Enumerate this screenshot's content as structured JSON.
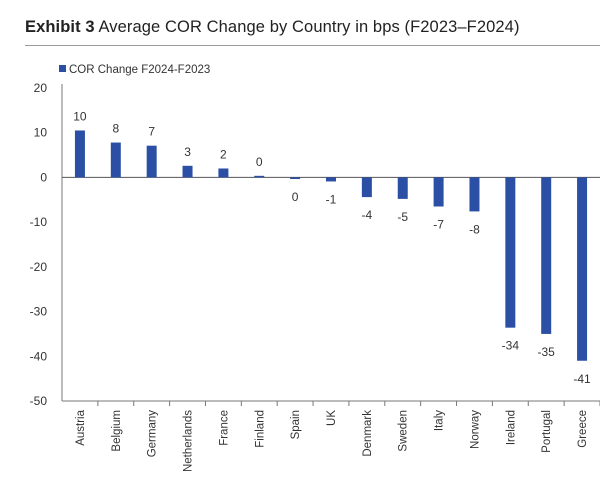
{
  "header": {
    "exhibit": "Exhibit 3",
    "title": "Average COR Change by Country in bps (F2023–F2024)"
  },
  "colors": {
    "bar": "#2B4FA4",
    "axis": "#777777"
  },
  "chart_data": {
    "type": "bar",
    "title": "Average COR Change by Country in bps (F2023–F2024)",
    "xlabel": "",
    "ylabel": "",
    "ylim": [
      -50,
      20
    ],
    "yticks": [
      20,
      10,
      0,
      -10,
      -20,
      -30,
      -40,
      -50
    ],
    "grid": false,
    "legend_position": "top-left",
    "categories": [
      "Austria",
      "Belgium",
      "Germany",
      "Netherlands",
      "France",
      "Finland",
      "Spain",
      "UK",
      "Denmark",
      "Sweden",
      "Italy",
      "Norway",
      "Ireland",
      "Portugal",
      "Greece"
    ],
    "series": [
      {
        "name": "COR Change F2024-F2023",
        "values": [
          10.5,
          7.8,
          7.1,
          2.6,
          2.0,
          0.3,
          -0.3,
          -0.9,
          -4.4,
          -4.8,
          -6.5,
          -7.6,
          -33.6,
          -35.0,
          -41.0
        ],
        "labels": [
          "10",
          "8",
          "7",
          "3",
          "2",
          "0",
          "0",
          "-1",
          "-4",
          "-5",
          "-7",
          "-8",
          "-34",
          "-35",
          "-41"
        ]
      }
    ]
  }
}
